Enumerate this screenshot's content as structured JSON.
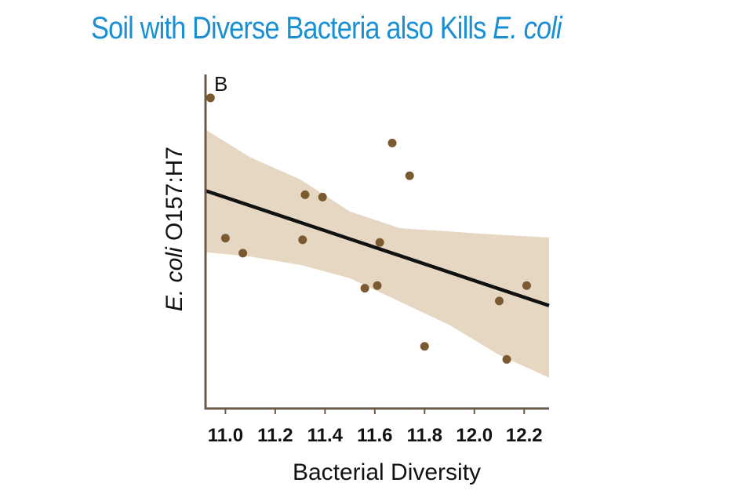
{
  "title": {
    "main": "Soil with Diverse Bacteria also Kills ",
    "italic": "E. coli"
  },
  "chart_data": {
    "type": "scatter",
    "panel_label": "B",
    "xlabel": "Bacterial Diversity",
    "ylabel_italic": "E. coli",
    "ylabel_rest": " O157:H7",
    "xlim": [
      10.92,
      12.3
    ],
    "ylim": [
      0,
      1
    ],
    "x_ticks": [
      "11.0",
      "11.2",
      "11.4",
      "11.6",
      "11.8",
      "12.0",
      "12.2"
    ],
    "x_tick_values": [
      11.0,
      11.2,
      11.4,
      11.6,
      11.8,
      12.0,
      12.2
    ],
    "grid": false,
    "points": [
      {
        "x": 10.94,
        "y": 0.93
      },
      {
        "x": 11.0,
        "y": 0.51
      },
      {
        "x": 11.07,
        "y": 0.465
      },
      {
        "x": 11.32,
        "y": 0.64
      },
      {
        "x": 11.31,
        "y": 0.505
      },
      {
        "x": 11.39,
        "y": 0.633
      },
      {
        "x": 11.56,
        "y": 0.36
      },
      {
        "x": 11.61,
        "y": 0.368
      },
      {
        "x": 11.62,
        "y": 0.497
      },
      {
        "x": 11.67,
        "y": 0.795
      },
      {
        "x": 11.74,
        "y": 0.697
      },
      {
        "x": 11.8,
        "y": 0.186
      },
      {
        "x": 12.1,
        "y": 0.322
      },
      {
        "x": 12.13,
        "y": 0.147
      },
      {
        "x": 12.21,
        "y": 0.368
      }
    ],
    "fit_line": {
      "x": [
        10.92,
        12.3
      ],
      "y": [
        0.652,
        0.308
      ]
    },
    "confidence_band": {
      "x": [
        10.92,
        11.1,
        11.3,
        11.5,
        11.7,
        11.9,
        12.1,
        12.3
      ],
      "upper": [
        0.835,
        0.752,
        0.686,
        0.59,
        0.54,
        0.53,
        0.52,
        0.512
      ],
      "lower": [
        0.468,
        0.455,
        0.43,
        0.39,
        0.32,
        0.25,
        0.16,
        0.092
      ]
    },
    "colors": {
      "points": "#7b5a32",
      "band": "#e6d7c3",
      "line": "#111111",
      "axis": "#6b5a48",
      "title": "#1a8fd2"
    }
  }
}
